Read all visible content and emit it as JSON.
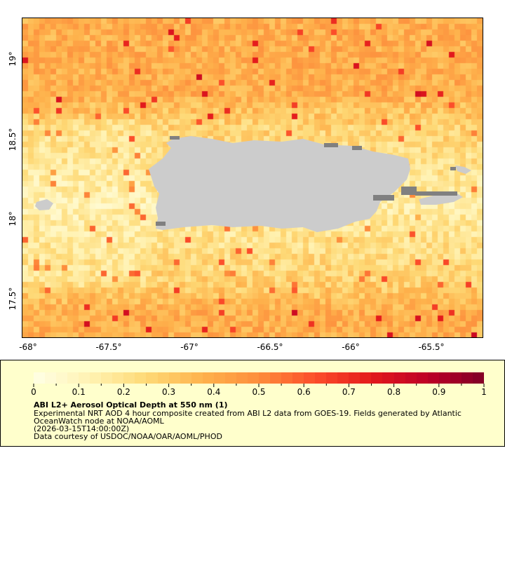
{
  "map": {
    "lon_range": [
      -68.04,
      -65.18
    ],
    "lat_range": [
      17.26,
      19.26
    ],
    "lon_ticks": [
      "-68°",
      "-67.5°",
      "-67°",
      "-66.5°",
      "-66°",
      "-65.5°"
    ],
    "lat_ticks": [
      "19°",
      "18.5°",
      "18°",
      "17.5°"
    ],
    "land_color": "#cccccc",
    "nodata_color": "#808080"
  },
  "legend": {
    "colorbar_range": [
      0,
      1
    ],
    "colorbar_ticks": [
      "0",
      "0.1",
      "0.2",
      "0.3",
      "0.4",
      "0.5",
      "0.6",
      "0.7",
      "0.8",
      "0.9",
      "1"
    ],
    "colormap": [
      "#ffffe5",
      "#fff2b2",
      "#fed976",
      "#feb24c",
      "#fd8d3c",
      "#fc4e2a",
      "#e31a1c",
      "#bd0026",
      "#800026"
    ],
    "title": "ABI L2+ Aerosol Optical Depth at 550 nm (1)",
    "line1": "Experimental NRT AOD 4 hour composite created from ABI L2 data from GOES-19. Fields generated by Atlantic",
    "line2": "OceanWatch node at NOAA/AOML",
    "line3": "(2026-03-15T14:00:00Z)",
    "line4": "Data courtesy of USDOC/NOAA/OAR/AOML/PHOD"
  }
}
